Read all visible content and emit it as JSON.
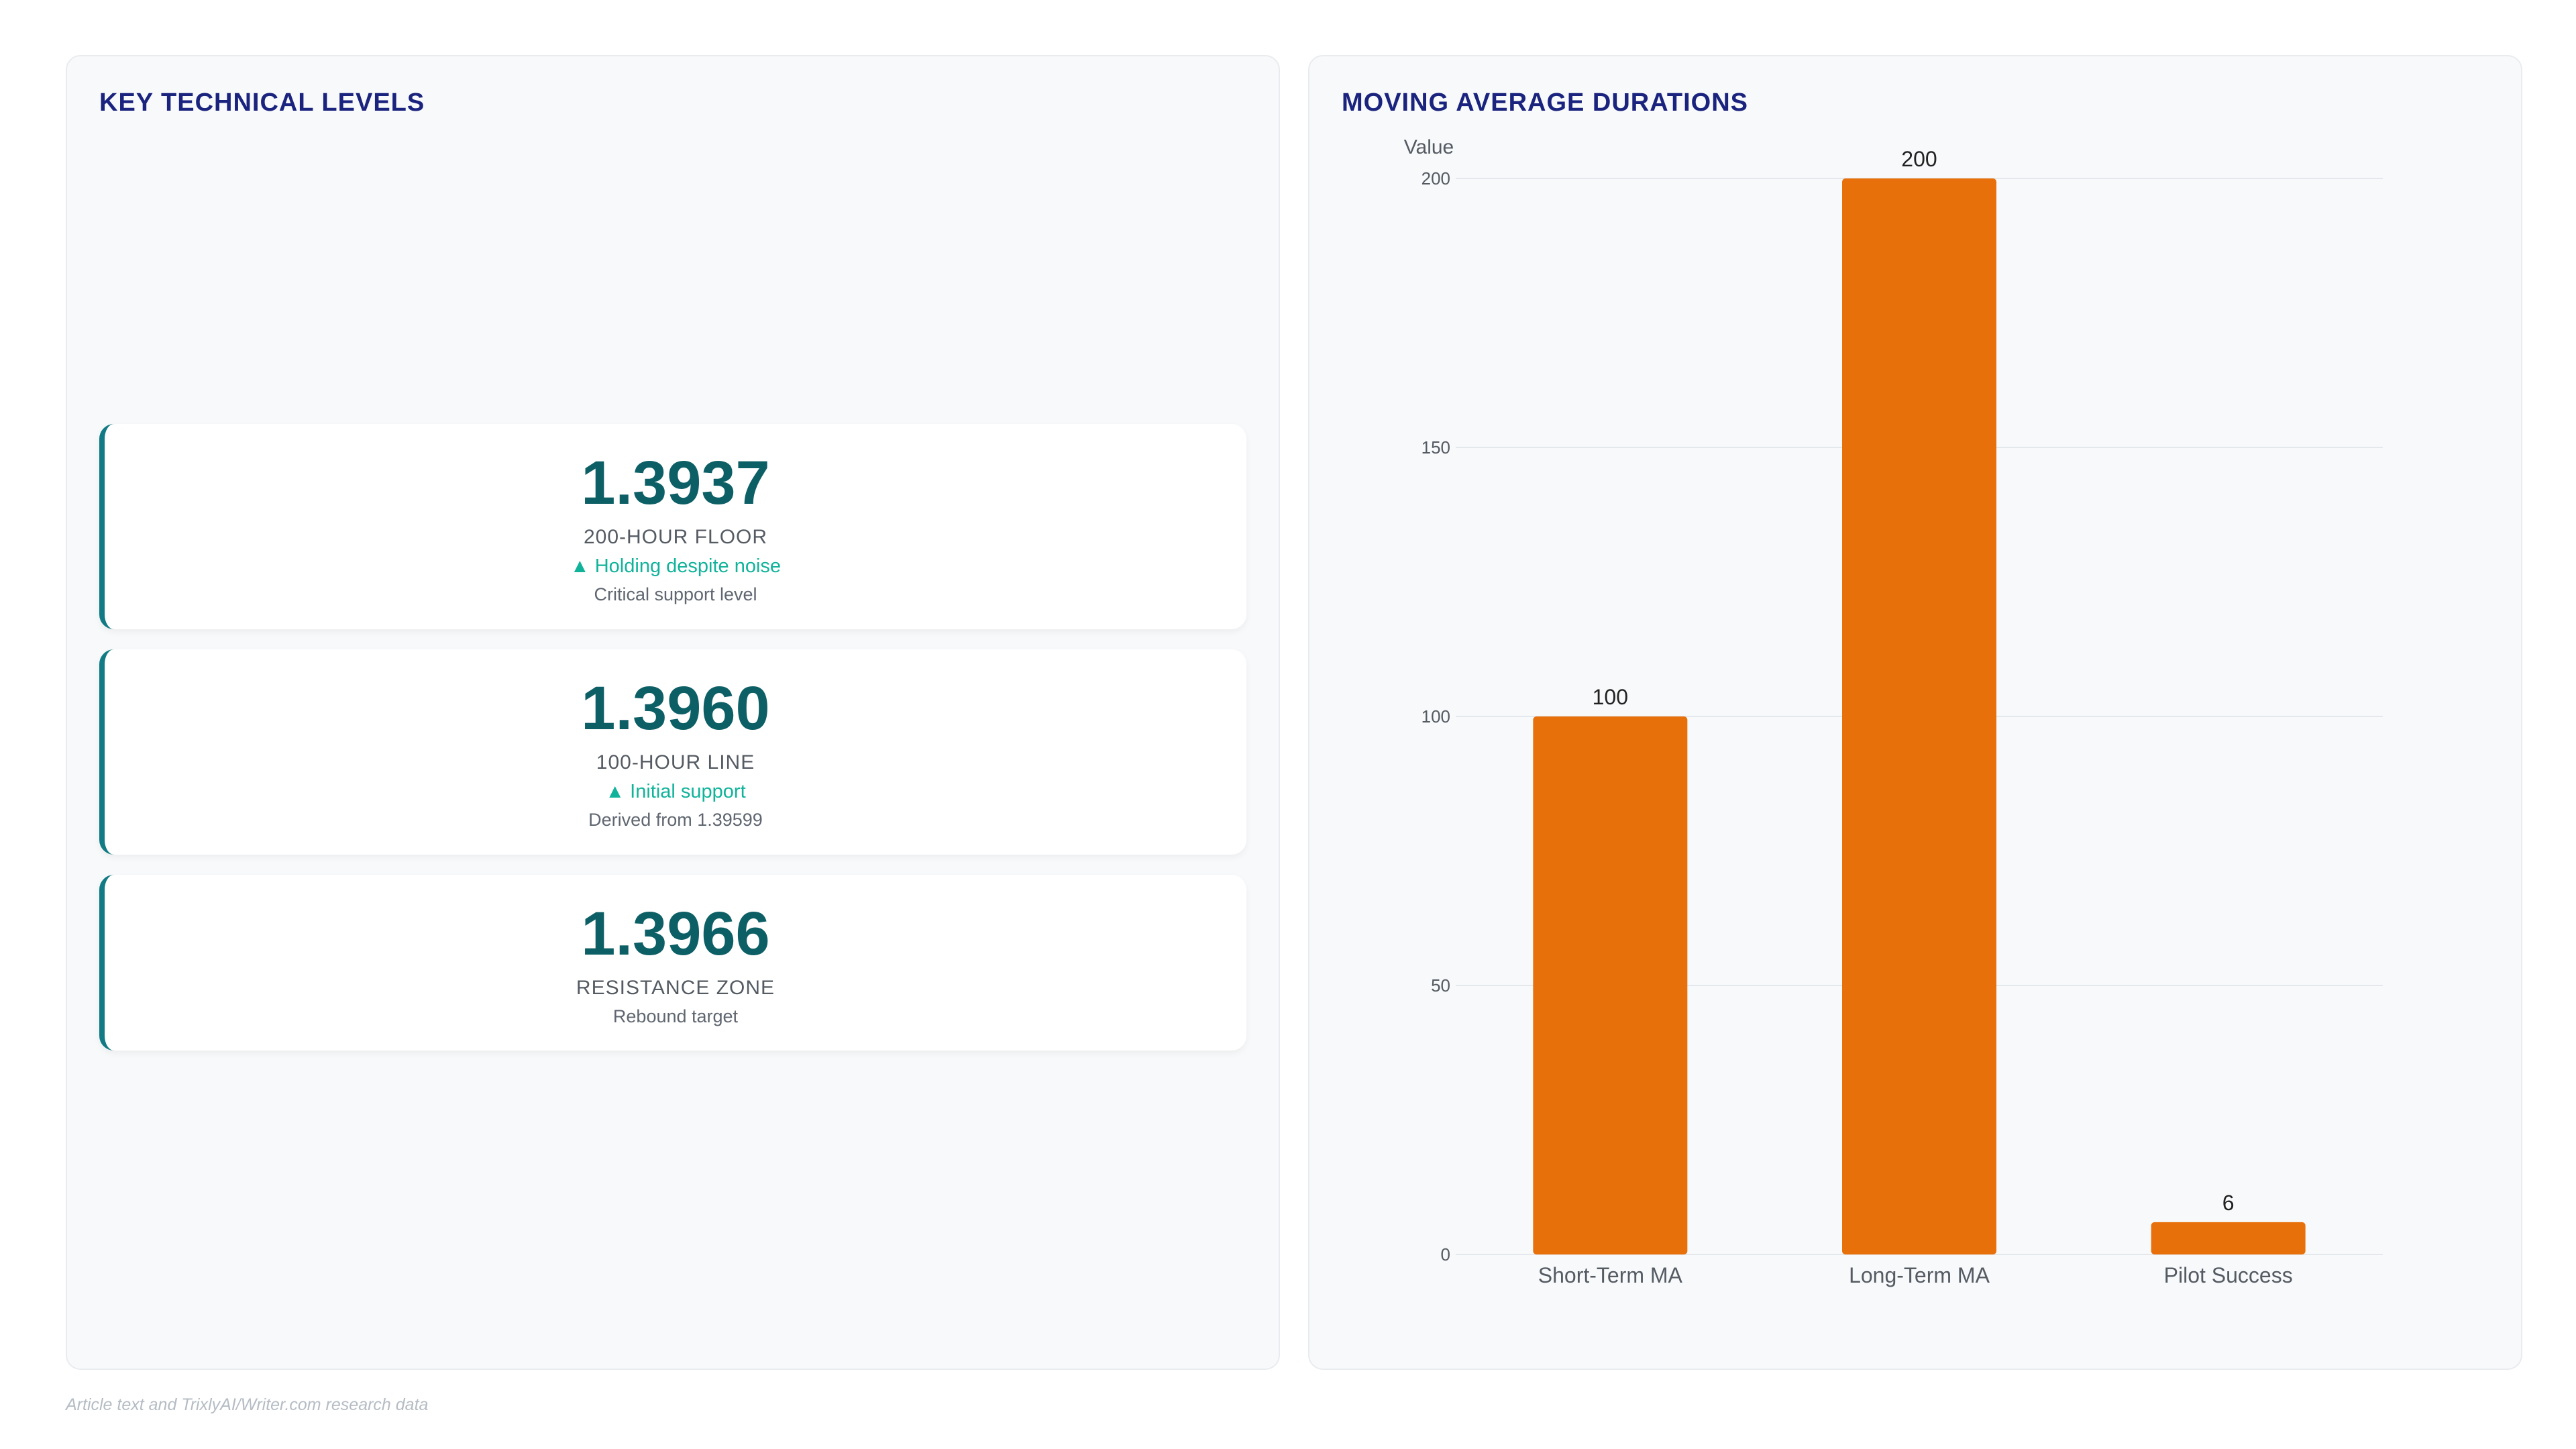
{
  "left_panel": {
    "title": "KEY TECHNICAL LEVELS",
    "cards": [
      {
        "value": "1.3937",
        "label": "200-HOUR FLOOR",
        "trend": "▲ Holding despite noise",
        "note": "Critical support level"
      },
      {
        "value": "1.3960",
        "label": "100-HOUR LINE",
        "trend": "▲ Initial support",
        "note": "Derived from 1.39599"
      },
      {
        "value": "1.3966",
        "label": "RESISTANCE ZONE",
        "note": "Rebound target"
      }
    ]
  },
  "right_panel": {
    "title": "MOVING AVERAGE DURATIONS"
  },
  "chart_data": {
    "type": "bar",
    "title": "MOVING AVERAGE DURATIONS",
    "categories": [
      "Short-Term MA",
      "Long-Term MA",
      "Pilot Success"
    ],
    "values": [
      100,
      200,
      6
    ],
    "data_labels": [
      "100",
      "200",
      "6"
    ],
    "xlabel": "",
    "ylabel": "Value",
    "ylim": [
      0,
      200
    ],
    "yticks": [
      0,
      50,
      100,
      150,
      200
    ],
    "grid": true,
    "legend": "none",
    "bar_color": "#e8700a"
  },
  "colors": {
    "title": "#1a237e",
    "card_value": "#0d5f66",
    "card_accent": "#117a84",
    "trend": "#10b39a",
    "bar": "#e8700a"
  },
  "footer": "Article text and TrixlyAI/Writer.com research data"
}
